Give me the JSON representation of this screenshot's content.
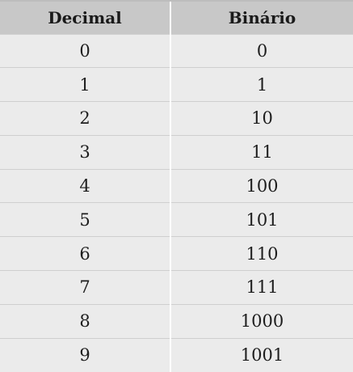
{
  "table": {
    "headers": [
      "Decimal",
      "Binário"
    ],
    "rows": [
      [
        "0",
        "0"
      ],
      [
        "1",
        "1"
      ],
      [
        "2",
        "10"
      ],
      [
        "3",
        "11"
      ],
      [
        "4",
        "100"
      ],
      [
        "5",
        "101"
      ],
      [
        "6",
        "110"
      ],
      [
        "7",
        "111"
      ],
      [
        "8",
        "1000"
      ],
      [
        "9",
        "1001"
      ]
    ]
  }
}
